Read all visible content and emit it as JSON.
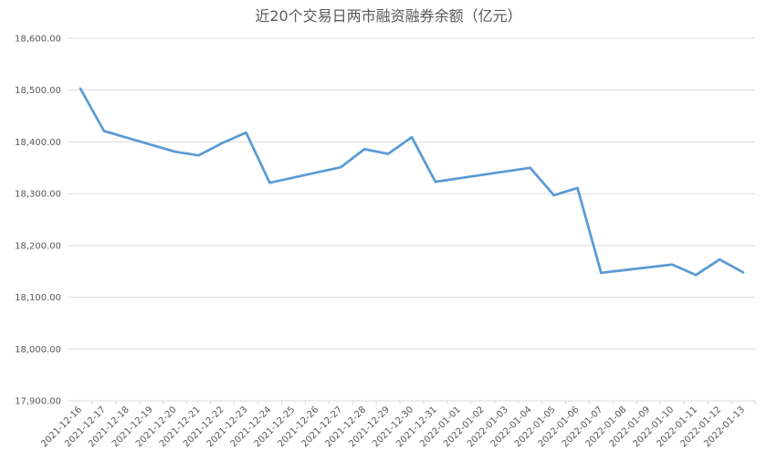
{
  "chart_data": {
    "type": "line",
    "title": "近20个交易日两市融资融券余额（亿元）",
    "xlabel": "",
    "ylabel": "",
    "ylim": [
      17900,
      18600
    ],
    "y_ticks": [
      17900,
      18000,
      18100,
      18200,
      18300,
      18400,
      18500,
      18600
    ],
    "y_tick_labels": [
      "17,900.00",
      "18,000.00",
      "18,100.00",
      "18,200.00",
      "18,300.00",
      "18,400.00",
      "18,500.00",
      "18,600.00"
    ],
    "grid": true,
    "legend": "none",
    "line_color": "#5B9BD5",
    "categories": [
      "2021-12-16",
      "2021-12-17",
      "2021-12-18",
      "2021-12-19",
      "2021-12-20",
      "2021-12-21",
      "2021-12-22",
      "2021-12-23",
      "2021-12-24",
      "2021-12-25",
      "2021-12-26",
      "2021-12-27",
      "2021-12-28",
      "2021-12-29",
      "2021-12-30",
      "2021-12-31",
      "2022-01-01",
      "2022-01-02",
      "2022-01-03",
      "2022-01-04",
      "2022-01-05",
      "2022-01-06",
      "2022-01-07",
      "2022-01-08",
      "2022-01-09",
      "2022-01-10",
      "2022-01-11",
      "2022-01-12",
      "2022-01-13"
    ],
    "points": [
      {
        "x": "2021-12-16",
        "y": 18503
      },
      {
        "x": "2021-12-17",
        "y": 18421
      },
      {
        "x": "2021-12-20",
        "y": 18381
      },
      {
        "x": "2021-12-21",
        "y": 18374
      },
      {
        "x": "2021-12-22",
        "y": 18398
      },
      {
        "x": "2021-12-23",
        "y": 18418
      },
      {
        "x": "2021-12-24",
        "y": 18321
      },
      {
        "x": "2021-12-27",
        "y": 18351
      },
      {
        "x": "2021-12-28",
        "y": 18386
      },
      {
        "x": "2021-12-29",
        "y": 18377
      },
      {
        "x": "2021-12-30",
        "y": 18409
      },
      {
        "x": "2021-12-31",
        "y": 18323
      },
      {
        "x": "2022-01-04",
        "y": 18350
      },
      {
        "x": "2022-01-05",
        "y": 18297
      },
      {
        "x": "2022-01-06",
        "y": 18311
      },
      {
        "x": "2022-01-07",
        "y": 18147
      },
      {
        "x": "2022-01-10",
        "y": 18163
      },
      {
        "x": "2022-01-11",
        "y": 18143
      },
      {
        "x": "2022-01-12",
        "y": 18173
      },
      {
        "x": "2022-01-13",
        "y": 18148
      }
    ]
  }
}
